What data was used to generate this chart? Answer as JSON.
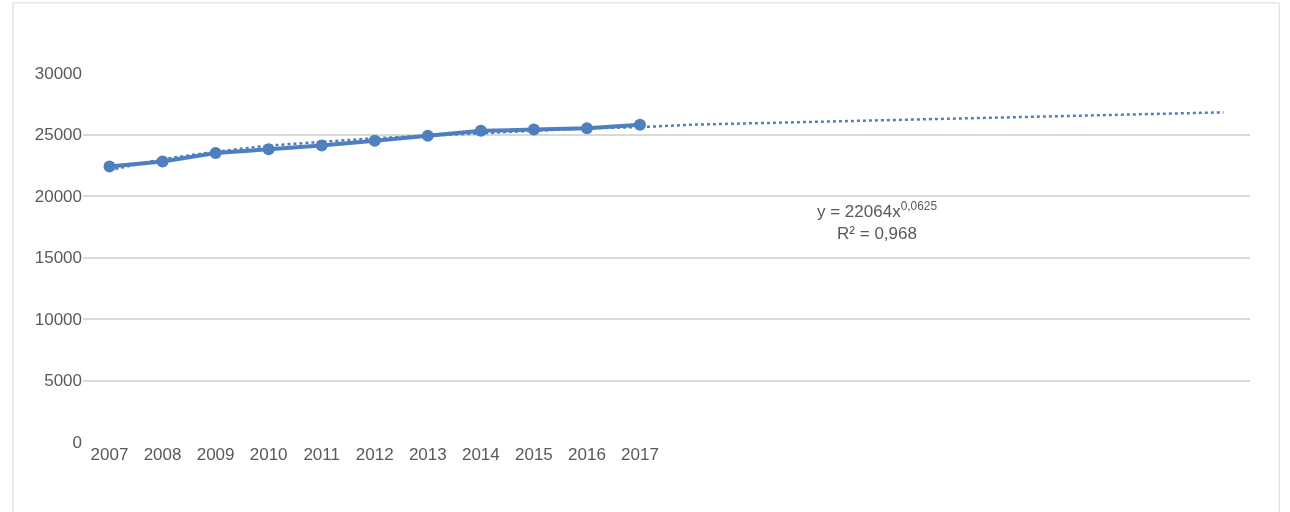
{
  "chart_data": {
    "type": "line",
    "categories": [
      "2007",
      "2008",
      "2009",
      "2010",
      "2011",
      "2012",
      "2013",
      "2014",
      "2015",
      "2016",
      "2017",
      null,
      null,
      null,
      null,
      null,
      null,
      null,
      null,
      null,
      null,
      null
    ],
    "series": [
      {
        "color": "#4e7fbf",
        "marker": "circle",
        "line_style": "solid",
        "values": [
          22400,
          22800,
          23500,
          23800,
          24100,
          24500,
          24900,
          25300,
          25400,
          25500,
          25800,
          null,
          null,
          null,
          null,
          null,
          null,
          null,
          null,
          null,
          null,
          null
        ]
      },
      {
        "color": "#4e7fbf",
        "marker": "none",
        "line_style": "dotted",
        "values": [
          22100,
          23000,
          23600,
          24100,
          24400,
          24700,
          24900,
          25100,
          25300,
          25500,
          25600,
          25800,
          25900,
          26000,
          26100,
          26200,
          26300,
          26400,
          26500,
          26600,
          26700,
          26800
        ]
      }
    ],
    "ylim": [
      0,
      30000
    ],
    "yticks": [
      0,
      5000,
      10000,
      15000,
      20000,
      25000,
      30000
    ],
    "grid": "y",
    "annotations": [
      "y = 22064x$^{0,0625}$\nR² = 0,968"
    ]
  }
}
